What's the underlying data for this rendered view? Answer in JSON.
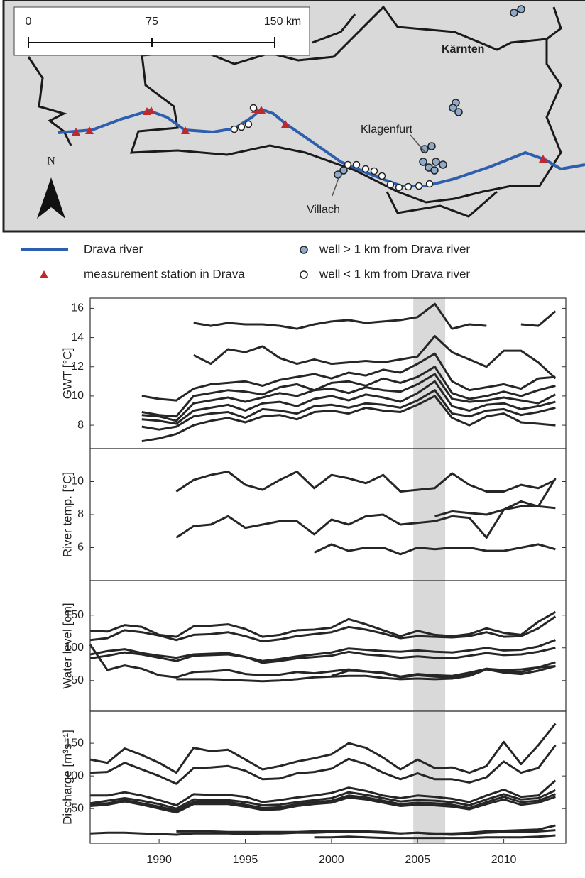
{
  "map": {
    "scale_labels": [
      "0",
      "75",
      "150 km"
    ],
    "region_label": "Kärnten",
    "city_labels": [
      "Klagenfurt",
      "Villach"
    ],
    "north": "N"
  },
  "legend": {
    "items": [
      "Drava river",
      "measurement station in Drava",
      "well > 1 km from Drava river",
      "well < 1 km from Drava river"
    ]
  },
  "chart_data": [
    {
      "type": "line",
      "ylabel": "GWT [°C]",
      "x": [
        1986,
        1987,
        1988,
        1989,
        1990,
        1991,
        1992,
        1993,
        1994,
        1995,
        1996,
        1997,
        1998,
        1999,
        2000,
        2001,
        2002,
        2003,
        2004,
        2005,
        2006,
        2007,
        2008,
        2009,
        2010,
        2011,
        2012,
        2013
      ],
      "xlim": [
        1986,
        2013.6
      ],
      "ylim": [
        6.4,
        16.7
      ],
      "yticks": [
        8,
        10,
        12,
        14,
        16
      ],
      "shaded_span": [
        2004.75,
        2006.6
      ],
      "series": [
        {
          "color": "#262626",
          "values": [
            null,
            null,
            null,
            null,
            null,
            null,
            15.0,
            14.8,
            15.0,
            14.9,
            14.9,
            14.8,
            14.6,
            14.9,
            15.1,
            15.2,
            15.0,
            15.1,
            15.2,
            15.4,
            16.3,
            14.6,
            14.9,
            14.8,
            null,
            14.9,
            14.8,
            15.8
          ]
        },
        {
          "color": "#262626",
          "values": [
            null,
            null,
            null,
            null,
            null,
            null,
            12.8,
            12.2,
            13.2,
            13.0,
            13.4,
            12.6,
            12.2,
            12.5,
            12.2,
            12.3,
            12.4,
            12.3,
            12.5,
            12.7,
            14.1,
            13.0,
            12.5,
            12.0,
            13.1,
            13.1,
            12.3,
            11.2
          ]
        },
        {
          "color": "#262626",
          "values": [
            null,
            null,
            null,
            10.0,
            9.8,
            9.7,
            10.5,
            10.8,
            10.9,
            11.0,
            10.7,
            11.1,
            11.3,
            11.5,
            11.2,
            11.6,
            11.4,
            11.8,
            11.6,
            12.2,
            12.9,
            11.0,
            10.4,
            10.6,
            10.8,
            10.5,
            11.2,
            11.3
          ]
        },
        {
          "color": "#262626",
          "values": [
            null,
            null,
            null,
            8.9,
            8.7,
            8.6,
            10.0,
            10.2,
            10.4,
            10.3,
            10.1,
            10.6,
            10.8,
            10.4,
            10.9,
            11.0,
            10.7,
            11.2,
            10.9,
            11.3,
            12.0,
            10.2,
            9.8,
            10.0,
            10.3,
            10.0,
            10.4,
            10.7
          ]
        },
        {
          "color": "#262626",
          "values": [
            null,
            null,
            null,
            8.7,
            8.6,
            8.3,
            9.5,
            9.7,
            9.9,
            9.6,
            9.9,
            10.2,
            10.0,
            10.4,
            10.5,
            10.2,
            10.6,
            10.4,
            10.3,
            10.8,
            11.5,
            9.8,
            9.6,
            9.7,
            9.9,
            9.7,
            9.5,
            10.1
          ]
        },
        {
          "color": "#262626",
          "values": [
            null,
            null,
            null,
            8.4,
            8.3,
            8.1,
            9.0,
            9.2,
            9.4,
            9.0,
            9.5,
            9.6,
            9.3,
            9.8,
            10.0,
            9.7,
            10.1,
            9.9,
            9.6,
            10.2,
            11.0,
            9.3,
            9.0,
            9.4,
            9.5,
            9.1,
            9.3,
            9.6
          ]
        },
        {
          "color": "#262626",
          "values": [
            null,
            null,
            null,
            7.9,
            7.7,
            7.9,
            8.6,
            8.8,
            8.9,
            8.5,
            9.1,
            9.0,
            8.8,
            9.3,
            9.4,
            9.2,
            9.5,
            9.4,
            9.2,
            9.7,
            10.4,
            8.8,
            8.6,
            9.0,
            9.1,
            8.7,
            8.9,
            9.2
          ]
        },
        {
          "color": "#262626",
          "values": [
            null,
            null,
            null,
            6.9,
            7.1,
            7.4,
            8.0,
            8.3,
            8.5,
            8.2,
            8.6,
            8.7,
            8.4,
            8.9,
            9.0,
            8.8,
            9.2,
            9.0,
            8.9,
            9.4,
            10.0,
            8.5,
            8.0,
            8.6,
            8.8,
            8.2,
            8.1,
            8.0
          ]
        }
      ]
    },
    {
      "type": "line",
      "ylabel": "River temp. [°C]",
      "x": [
        1986,
        1987,
        1988,
        1989,
        1990,
        1991,
        1992,
        1993,
        1994,
        1995,
        1996,
        1997,
        1998,
        1999,
        2000,
        2001,
        2002,
        2003,
        2004,
        2005,
        2006,
        2007,
        2008,
        2009,
        2010,
        2011,
        2012,
        2013
      ],
      "xlim": [
        1986,
        2013.6
      ],
      "ylim": [
        4,
        12
      ],
      "yticks": [
        6,
        8,
        10
      ],
      "shaded_span": [
        2004.75,
        2006.6
      ],
      "series": [
        {
          "color": "#262626",
          "values": [
            null,
            null,
            null,
            null,
            null,
            9.4,
            10.1,
            10.4,
            10.6,
            9.8,
            9.5,
            10.1,
            10.6,
            9.6,
            10.4,
            10.2,
            9.9,
            10.4,
            9.4,
            9.5,
            9.6,
            10.5,
            9.8,
            9.4,
            9.4,
            9.8,
            9.6,
            10.1
          ]
        },
        {
          "color": "#262626",
          "values": [
            null,
            null,
            null,
            null,
            null,
            6.6,
            7.3,
            7.4,
            7.9,
            7.2,
            7.4,
            7.6,
            7.6,
            6.8,
            7.7,
            7.4,
            7.9,
            8.0,
            7.4,
            7.5,
            7.6,
            7.9,
            7.8,
            6.6,
            8.3,
            8.8,
            8.5,
            10.2
          ]
        },
        {
          "color": "#262626",
          "values": [
            null,
            null,
            null,
            null,
            null,
            null,
            null,
            null,
            null,
            null,
            null,
            null,
            null,
            null,
            null,
            null,
            null,
            null,
            null,
            null,
            7.9,
            8.2,
            8.1,
            8.0,
            8.3,
            8.5,
            8.5,
            8.4
          ]
        },
        {
          "color": "#262626",
          "values": [
            null,
            null,
            null,
            null,
            null,
            null,
            null,
            null,
            null,
            null,
            null,
            null,
            null,
            5.7,
            6.2,
            5.8,
            6.0,
            6.0,
            5.6,
            6.0,
            5.9,
            6.0,
            6.0,
            5.8,
            5.8,
            6.0,
            6.2,
            5.9
          ]
        }
      ]
    },
    {
      "type": "line",
      "ylabel": "Water level [cm]",
      "x": [
        1986,
        1987,
        1988,
        1989,
        1990,
        1991,
        1992,
        1993,
        1994,
        1995,
        1996,
        1997,
        1998,
        1999,
        2000,
        2001,
        2002,
        2003,
        2004,
        2005,
        2006,
        2007,
        2008,
        2009,
        2010,
        2011,
        2012,
        2013
      ],
      "xlim": [
        1986,
        2013.6
      ],
      "ylim": [
        3,
        203
      ],
      "yticks": [
        50,
        100,
        150
      ],
      "shaded_span": [
        2004.75,
        2006.6
      ],
      "series": [
        {
          "color": "#262626",
          "values": [
            126,
            125,
            135,
            132,
            120,
            117,
            133,
            134,
            136,
            129,
            117,
            120,
            127,
            128,
            131,
            144,
            136,
            127,
            118,
            126,
            120,
            118,
            121,
            130,
            123,
            120,
            140,
            155
          ]
        },
        {
          "color": "#262626",
          "values": [
            112,
            115,
            127,
            124,
            119,
            112,
            120,
            121,
            124,
            118,
            110,
            113,
            118,
            121,
            124,
            132,
            128,
            122,
            115,
            118,
            117,
            116,
            118,
            124,
            117,
            118,
            130,
            148
          ]
        },
        {
          "color": "#262626",
          "values": [
            105,
            66,
            73,
            68,
            58,
            55,
            63,
            64,
            66,
            60,
            58,
            59,
            63,
            61,
            64,
            67,
            64,
            62,
            56,
            60,
            58,
            57,
            62,
            68,
            64,
            63,
            70,
            72
          ]
        },
        {
          "color": "#262626",
          "values": [
            90,
            95,
            98,
            92,
            88,
            85,
            90,
            91,
            92,
            86,
            80,
            83,
            87,
            90,
            93,
            99,
            97,
            95,
            94,
            96,
            94,
            93,
            96,
            100,
            96,
            97,
            102,
            112
          ]
        },
        {
          "color": "#262626",
          "values": [
            84,
            88,
            93,
            90,
            85,
            80,
            88,
            89,
            90,
            86,
            77,
            80,
            84,
            86,
            88,
            94,
            90,
            88,
            85,
            87,
            85,
            84,
            88,
            92,
            89,
            90,
            94,
            100
          ]
        },
        {
          "color": "#262626",
          "values": [
            null,
            null,
            null,
            null,
            null,
            52,
            52,
            52,
            51,
            50,
            49,
            50,
            52,
            55,
            56,
            57,
            57,
            54,
            52,
            53,
            52,
            53,
            57,
            67,
            62,
            60,
            65,
            72
          ]
        },
        {
          "color": "#262626",
          "values": [
            null,
            null,
            null,
            null,
            null,
            null,
            null,
            null,
            null,
            null,
            null,
            null,
            null,
            null,
            57,
            65,
            64,
            61,
            55,
            58,
            56,
            55,
            60,
            68,
            66,
            67,
            70,
            78
          ]
        }
      ]
    },
    {
      "type": "line",
      "ylabel": "Discharge [m³s⁻¹]",
      "x": [
        1986,
        1987,
        1988,
        1989,
        1990,
        1991,
        1992,
        1993,
        1994,
        1995,
        1996,
        1997,
        1998,
        1999,
        2000,
        2001,
        2002,
        2003,
        2004,
        2005,
        2006,
        2007,
        2008,
        2009,
        2010,
        2011,
        2012,
        2013
      ],
      "xlim": [
        1986,
        2013.6
      ],
      "ylim": [
        -3,
        199
      ],
      "yticks": [
        50,
        100,
        150
      ],
      "xticks": [
        1990,
        1995,
        2000,
        2005,
        2010
      ],
      "shaded_span": [
        2004.75,
        2006.6
      ],
      "series": [
        {
          "color": "#262626",
          "values": [
            125,
            120,
            142,
            132,
            120,
            105,
            143,
            138,
            140,
            125,
            110,
            115,
            122,
            127,
            133,
            150,
            143,
            128,
            110,
            125,
            112,
            113,
            105,
            115,
            152,
            118,
            147,
            180
          ]
        },
        {
          "color": "#262626",
          "values": [
            105,
            106,
            120,
            110,
            100,
            88,
            112,
            113,
            115,
            108,
            95,
            96,
            104,
            106,
            111,
            126,
            118,
            105,
            95,
            104,
            95,
            95,
            90,
            98,
            122,
            105,
            112,
            147
          ]
        },
        {
          "color": "#262626",
          "values": [
            70,
            70,
            75,
            70,
            63,
            55,
            72,
            71,
            71,
            68,
            60,
            63,
            67,
            70,
            74,
            82,
            77,
            70,
            66,
            70,
            68,
            65,
            60,
            70,
            79,
            68,
            70,
            93
          ]
        },
        {
          "color": "#262626",
          "values": [
            58,
            62,
            66,
            62,
            57,
            50,
            64,
            63,
            63,
            60,
            55,
            56,
            60,
            63,
            66,
            75,
            71,
            66,
            61,
            63,
            62,
            60,
            55,
            64,
            72,
            64,
            66,
            78
          ]
        },
        {
          "color": "#262626",
          "values": [
            56,
            58,
            63,
            58,
            53,
            47,
            60,
            60,
            60,
            56,
            51,
            52,
            57,
            60,
            62,
            70,
            67,
            62,
            57,
            59,
            58,
            56,
            51,
            60,
            68,
            60,
            62,
            72
          ]
        },
        {
          "color": "#262626",
          "values": [
            54,
            56,
            61,
            56,
            50,
            44,
            57,
            57,
            57,
            53,
            48,
            49,
            54,
            57,
            59,
            67,
            64,
            59,
            54,
            56,
            55,
            53,
            49,
            57,
            64,
            56,
            59,
            68
          ]
        },
        {
          "color": "#262626",
          "values": [
            12,
            13,
            13,
            12,
            11,
            10,
            12,
            12,
            12,
            11,
            12,
            12,
            13,
            13,
            14,
            15,
            14,
            13,
            12,
            13,
            12,
            12,
            13,
            15,
            16,
            17,
            18,
            24
          ]
        },
        {
          "color": "#262626",
          "values": [
            null,
            null,
            null,
            null,
            null,
            15,
            15,
            15,
            14,
            14,
            14,
            14,
            14,
            15,
            15,
            16,
            15,
            14,
            12,
            13,
            11,
            10,
            11,
            13,
            14,
            14,
            15,
            17
          ]
        },
        {
          "color": "#262626",
          "values": [
            null,
            null,
            null,
            null,
            null,
            null,
            null,
            null,
            null,
            null,
            null,
            null,
            null,
            6,
            6,
            7,
            6,
            5,
            5,
            5,
            5,
            5,
            5,
            6,
            6,
            6,
            7,
            9
          ]
        }
      ]
    }
  ]
}
